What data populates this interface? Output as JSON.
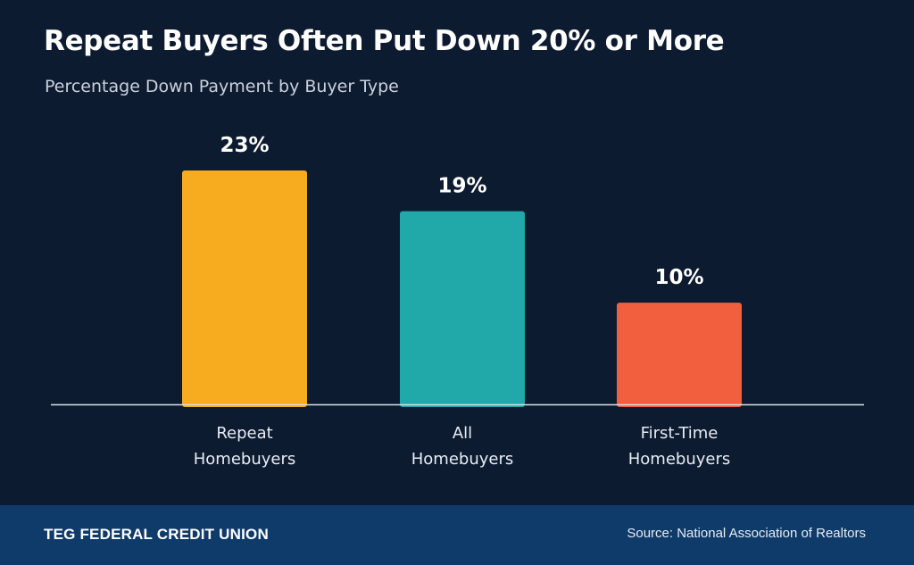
{
  "header": {
    "title": "Repeat Buyers Often Put Down 20% or More",
    "subtitle": "Percentage Down Payment by Buyer Type"
  },
  "colors": {
    "background": "#0d1b31",
    "footer": "#0f3b6b",
    "repeat": "#f7ab1f",
    "all": "#20a9a8",
    "first_time": "#f25f3f",
    "baseline": "#d9dee6"
  },
  "chart_data": {
    "type": "bar",
    "categories": [
      [
        "Repeat",
        "Homebuyers"
      ],
      [
        "All",
        "Homebuyers"
      ],
      [
        "First-Time",
        "Homebuyers"
      ]
    ],
    "values": [
      23,
      19,
      10
    ],
    "value_labels": [
      "23%",
      "19%",
      "10%"
    ],
    "bar_colors": [
      "#f7ab1f",
      "#20a9a8",
      "#f25f3f"
    ],
    "title": "Repeat Buyers Often Put Down 20% or More",
    "subtitle": "Percentage Down Payment by Buyer Type",
    "xlabel": "",
    "ylabel": "",
    "ylim": [
      0,
      23
    ],
    "grid": false,
    "legend": "none"
  },
  "footer": {
    "org_name": "TEG FEDERAL CREDIT UNION",
    "source": "Source: National Association of Realtors"
  }
}
